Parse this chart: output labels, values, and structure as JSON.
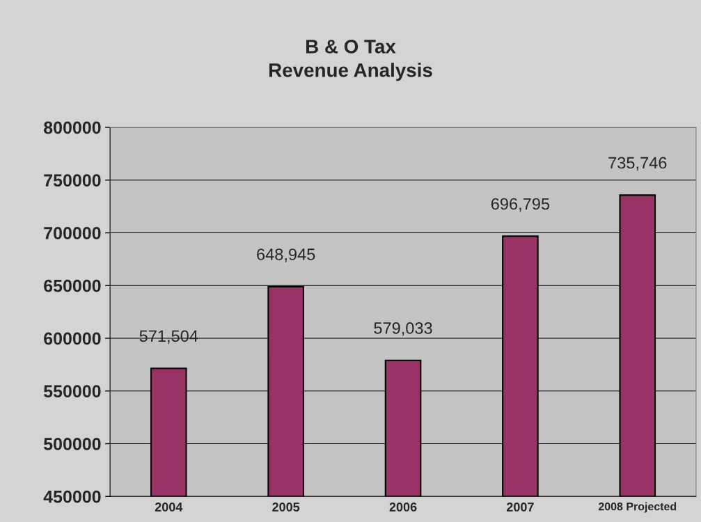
{
  "chart_data": {
    "type": "bar",
    "title": "B & O Tax\nRevenue Analysis",
    "categories": [
      "2004",
      "2005",
      "2006",
      "2007",
      "2008 Projected"
    ],
    "values": [
      571504,
      648945,
      579033,
      696795,
      735746
    ],
    "value_labels": [
      "571,504",
      "648,945",
      "579,033",
      "696,795",
      "735,746"
    ],
    "color": "#993366",
    "ylim": [
      450000,
      800000
    ],
    "yticks": [
      450000,
      500000,
      550000,
      600000,
      650000,
      700000,
      750000,
      800000
    ],
    "grid": "y",
    "legend": false
  }
}
